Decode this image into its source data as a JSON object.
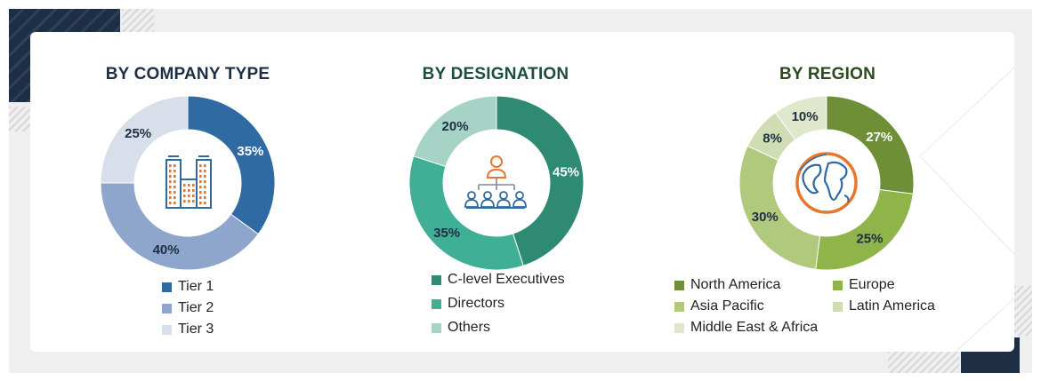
{
  "chart_data": [
    {
      "type": "pie",
      "variant": "donut",
      "title": "BY COMPANY TYPE",
      "title_color": "#1e2e44",
      "start_angle_deg": 0,
      "categories": [
        "Tier 1",
        "Tier 2",
        "Tier 3"
      ],
      "values": [
        35,
        40,
        25
      ],
      "labels": [
        "35%",
        "40%",
        "25%"
      ],
      "colors": [
        "#2f6aa3",
        "#8ea6cc",
        "#d8dfeb"
      ],
      "label_colors": [
        "#ffffff",
        "#1e2e44",
        "#1e2e44"
      ],
      "center_icon": "buildings-icon",
      "legend_position": "bottom"
    },
    {
      "type": "pie",
      "variant": "donut",
      "title": "BY DESIGNATION",
      "title_color": "#1d4d3b",
      "start_angle_deg": 0,
      "categories": [
        "C-level Executives",
        "Directors",
        "Others"
      ],
      "values": [
        45,
        35,
        20
      ],
      "labels": [
        "45%",
        "35%",
        "20%"
      ],
      "colors": [
        "#2e8a72",
        "#3fb095",
        "#a6d3c6"
      ],
      "label_colors": [
        "#ffffff",
        "#1e2e44",
        "#1e2e44"
      ],
      "center_icon": "org-hierarchy-icon",
      "legend_position": "bottom"
    },
    {
      "type": "pie",
      "variant": "donut",
      "title": "BY REGION",
      "title_color": "#2c4a1c",
      "start_angle_deg": 0,
      "categories": [
        "North America",
        "Europe",
        "Asia Pacific",
        "Latin America",
        "Middle East & Africa"
      ],
      "values": [
        27,
        25,
        30,
        8,
        10
      ],
      "labels": [
        "27%",
        "25%",
        "30%",
        "8%",
        "10%"
      ],
      "colors": [
        "#6e8f35",
        "#8fb449",
        "#b1c97c",
        "#cfdcb4",
        "#dfe7cc"
      ],
      "label_colors": [
        "#ffffff",
        "#1e2e44",
        "#1e2e44",
        "#1e2e44",
        "#1e2e44"
      ],
      "center_icon": "globe-icon",
      "legend_position": "bottom"
    }
  ]
}
